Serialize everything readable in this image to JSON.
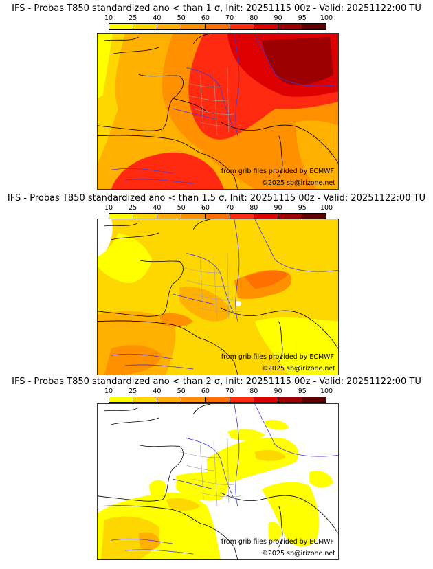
{
  "colorbar": {
    "ticks": [
      "10",
      "25",
      "40",
      "50",
      "60",
      "70",
      "80",
      "90",
      "95",
      "100"
    ],
    "colors": [
      "#ffff00",
      "#ffd700",
      "#ffb000",
      "#ff9000",
      "#ff7000",
      "#ff2a10",
      "#dd0000",
      "#9c0000",
      "#5e0000"
    ]
  },
  "panels": [
    {
      "title": "IFS - Probas T850  standardized ano < than 1 σ, Init: 20251115 00z - Valid: 20251122:00 TU",
      "credit_source": "from grib files provided by ECMWF",
      "credit_copyright": "©2025 sb@irizone.net"
    },
    {
      "title": "IFS - Probas T850  standardized ano < than 1.5 σ, Init: 20251115 00z - Valid: 20251122:00 TU",
      "credit_source": "from grib files provided by ECMWF",
      "credit_copyright": "©2025 sb@irizone.net"
    },
    {
      "title": "IFS - Probas T850  standardized ano < than 2 σ, Init: 20251115 00z - Valid: 20251122:00 TU",
      "credit_source": "from grib files provided by ECMWF",
      "credit_copyright": "©2025 sb@irizone.net"
    }
  ],
  "map_style": {
    "coast_color": "#000000",
    "river_color": "#3a3ae0",
    "border_color": "#a0a0a0"
  }
}
